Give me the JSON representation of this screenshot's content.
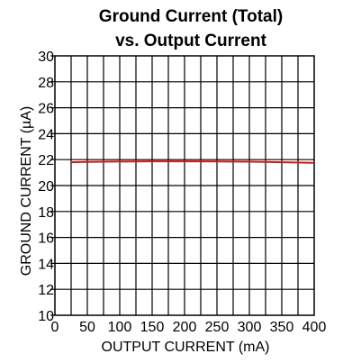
{
  "chart_data": {
    "type": "line",
    "title": "Ground Current (Total)",
    "subtitle": "vs. Output Current",
    "xlabel": "OUTPUT CURRENT (mA)",
    "ylabel": "GROUND CURRENT (µA)",
    "xlim": [
      0,
      400
    ],
    "ylim": [
      10,
      30
    ],
    "xticks": [
      0,
      50,
      100,
      150,
      200,
      250,
      300,
      350,
      400
    ],
    "yticks": [
      10,
      12,
      14,
      16,
      18,
      20,
      22,
      24,
      26,
      28,
      30
    ],
    "xtick_labels": [
      "0",
      "50",
      "100",
      "150",
      "200",
      "250",
      "300",
      "350",
      "400"
    ],
    "ytick_labels": [
      "10",
      "12",
      "14",
      "16",
      "18",
      "20",
      "22",
      "24",
      "26",
      "28",
      "30"
    ],
    "x_minor_step": 25,
    "grid": true,
    "legend": "none",
    "series": [
      {
        "color": "#d01818",
        "x": [
          25,
          50,
          100,
          150,
          200,
          250,
          300,
          350,
          400
        ],
        "y": [
          21.8,
          21.82,
          21.85,
          21.87,
          21.87,
          21.86,
          21.84,
          21.8,
          21.75
        ]
      }
    ]
  }
}
